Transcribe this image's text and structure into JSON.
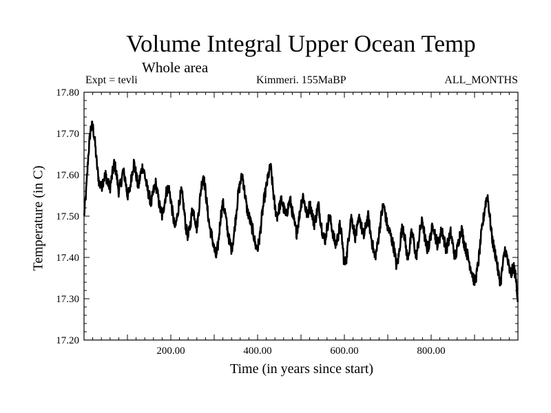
{
  "chart_data": {
    "type": "line",
    "title": "Volume Integral Upper Ocean Temp",
    "subtitle": "Whole area",
    "annotations": {
      "left": "Expt = tevli",
      "center": "Kimmeri. 155MaBP",
      "right": "ALL_MONTHS"
    },
    "xlabel": "Time (in years since start)",
    "ylabel": "Temperature (in C)",
    "xlim": [
      0,
      1000
    ],
    "ylim": [
      17.2,
      17.8
    ],
    "x_ticks": [
      200,
      400,
      600,
      800
    ],
    "x_tick_labels": [
      "200.00",
      "400.00",
      "600.00",
      "800.00"
    ],
    "y_ticks": [
      17.2,
      17.3,
      17.4,
      17.5,
      17.6,
      17.7,
      17.8
    ],
    "y_tick_labels": [
      "17.20",
      "17.30",
      "17.40",
      "17.50",
      "17.60",
      "17.70",
      "17.80"
    ],
    "series": [
      {
        "name": "Temperature",
        "color": "#000000",
        "band_halfwidth": 0.015,
        "x": [
          0,
          5,
          10,
          15,
          20,
          25,
          30,
          35,
          40,
          45,
          50,
          55,
          60,
          65,
          70,
          75,
          80,
          85,
          90,
          95,
          100,
          105,
          110,
          115,
          120,
          125,
          130,
          135,
          140,
          145,
          150,
          155,
          160,
          165,
          170,
          175,
          180,
          185,
          190,
          195,
          200,
          205,
          210,
          215,
          220,
          225,
          230,
          235,
          240,
          245,
          250,
          255,
          260,
          265,
          270,
          275,
          280,
          285,
          290,
          295,
          300,
          305,
          310,
          315,
          320,
          325,
          330,
          335,
          340,
          345,
          350,
          355,
          360,
          365,
          370,
          375,
          380,
          385,
          390,
          395,
          400,
          405,
          410,
          415,
          420,
          425,
          430,
          435,
          440,
          445,
          450,
          455,
          460,
          465,
          470,
          475,
          480,
          485,
          490,
          495,
          500,
          505,
          510,
          515,
          520,
          525,
          530,
          535,
          540,
          545,
          550,
          555,
          560,
          565,
          570,
          575,
          580,
          585,
          590,
          595,
          600,
          605,
          610,
          615,
          620,
          625,
          630,
          635,
          640,
          645,
          650,
          655,
          660,
          665,
          670,
          675,
          680,
          685,
          690,
          695,
          700,
          705,
          710,
          715,
          720,
          725,
          730,
          735,
          740,
          745,
          750,
          755,
          760,
          765,
          770,
          775,
          780,
          785,
          790,
          795,
          800,
          805,
          810,
          815,
          820,
          825,
          830,
          835,
          840,
          845,
          850,
          855,
          860,
          865,
          870,
          875,
          880,
          885,
          890,
          895,
          900,
          905,
          910,
          915,
          920,
          925,
          930,
          935,
          940,
          945,
          950,
          955,
          960,
          965,
          970,
          975,
          980,
          985,
          990,
          995,
          1000
        ],
        "values": [
          17.5,
          17.56,
          17.65,
          17.71,
          17.72,
          17.68,
          17.62,
          17.58,
          17.57,
          17.59,
          17.6,
          17.58,
          17.57,
          17.6,
          17.63,
          17.6,
          17.56,
          17.58,
          17.61,
          17.59,
          17.55,
          17.56,
          17.6,
          17.63,
          17.6,
          17.57,
          17.6,
          17.62,
          17.6,
          17.57,
          17.55,
          17.53,
          17.56,
          17.58,
          17.55,
          17.52,
          17.5,
          17.53,
          17.56,
          17.57,
          17.54,
          17.5,
          17.47,
          17.5,
          17.54,
          17.56,
          17.52,
          17.47,
          17.45,
          17.48,
          17.52,
          17.5,
          17.47,
          17.52,
          17.57,
          17.6,
          17.56,
          17.51,
          17.47,
          17.45,
          17.42,
          17.4,
          17.44,
          17.5,
          17.53,
          17.51,
          17.47,
          17.44,
          17.42,
          17.45,
          17.5,
          17.55,
          17.58,
          17.6,
          17.56,
          17.52,
          17.5,
          17.48,
          17.46,
          17.43,
          17.42,
          17.45,
          17.5,
          17.54,
          17.57,
          17.6,
          17.62,
          17.57,
          17.52,
          17.5,
          17.52,
          17.54,
          17.52,
          17.5,
          17.52,
          17.54,
          17.51,
          17.48,
          17.46,
          17.49,
          17.53,
          17.55,
          17.52,
          17.5,
          17.53,
          17.51,
          17.48,
          17.5,
          17.53,
          17.49,
          17.46,
          17.44,
          17.47,
          17.5,
          17.48,
          17.45,
          17.43,
          17.45,
          17.48,
          17.44,
          17.38,
          17.4,
          17.45,
          17.5,
          17.48,
          17.45,
          17.47,
          17.5,
          17.47,
          17.45,
          17.48,
          17.5,
          17.46,
          17.43,
          17.4,
          17.42,
          17.46,
          17.5,
          17.53,
          17.5,
          17.47,
          17.46,
          17.44,
          17.42,
          17.38,
          17.4,
          17.45,
          17.48,
          17.44,
          17.4,
          17.42,
          17.46,
          17.44,
          17.4,
          17.43,
          17.47,
          17.49,
          17.45,
          17.42,
          17.43,
          17.46,
          17.48,
          17.45,
          17.43,
          17.45,
          17.47,
          17.44,
          17.42,
          17.44,
          17.46,
          17.43,
          17.4,
          17.42,
          17.45,
          17.47,
          17.44,
          17.42,
          17.4,
          17.38,
          17.36,
          17.34,
          17.36,
          17.4,
          17.45,
          17.49,
          17.53,
          17.55,
          17.5,
          17.45,
          17.42,
          17.4,
          17.36,
          17.34,
          17.38,
          17.42,
          17.4,
          17.37,
          17.36,
          17.38,
          17.35,
          17.3
        ]
      }
    ]
  }
}
